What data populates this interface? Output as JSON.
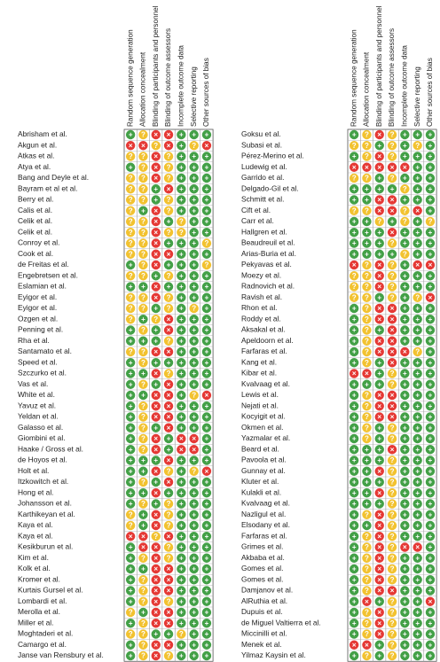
{
  "domains": [
    "Random sequence generation",
    "Allocation concealment",
    "Blinding of participants and personnel",
    "Blinding of outcome assessors",
    "Incomplete outcome data",
    "Selective reporting",
    "Other sources of bias"
  ],
  "left": {
    "rows": [
      {
        "study": "Abrisham et al.",
        "r": [
          "+",
          "?",
          "-",
          "-",
          "+",
          "+",
          "+"
        ]
      },
      {
        "study": "Akgun et al.",
        "r": [
          "-",
          "-",
          "?",
          "-",
          "+",
          "?",
          "-"
        ]
      },
      {
        "study": "Atkas et al.",
        "r": [
          "?",
          "?",
          "-",
          "?",
          "+",
          "+",
          "+"
        ]
      },
      {
        "study": "Atya et al.",
        "r": [
          "+",
          "?",
          "-",
          "?",
          "+",
          "+",
          "+"
        ]
      },
      {
        "study": "Bang and Deyle et al.",
        "r": [
          "?",
          "?",
          "-",
          "?",
          "+",
          "+",
          "+"
        ]
      },
      {
        "study": "Bayram et al et al.",
        "r": [
          "?",
          "?",
          "+",
          "-",
          "+",
          "+",
          "+"
        ]
      },
      {
        "study": "Berry et al.",
        "r": [
          "?",
          "?",
          "+",
          "?",
          "+",
          "+",
          "+"
        ]
      },
      {
        "study": "Calis et al.",
        "r": [
          "?",
          "+",
          "-",
          "?",
          "+",
          "+",
          "+"
        ]
      },
      {
        "study": "Celik et al.",
        "r": [
          "?",
          "?",
          "-",
          "+",
          "?",
          "+",
          "+"
        ]
      },
      {
        "study": "Celik et al.",
        "r": [
          "?",
          "?",
          "-",
          "?",
          "?",
          "+",
          "+"
        ]
      },
      {
        "study": "Conroy et al.",
        "r": [
          "?",
          "?",
          "-",
          "+",
          "+",
          "+",
          "?"
        ]
      },
      {
        "study": "Cook et al.",
        "r": [
          "?",
          "?",
          "-",
          "-",
          "+",
          "+",
          "+"
        ]
      },
      {
        "study": "de Freitas et al.",
        "r": [
          "+",
          "?",
          "-",
          "+",
          "+",
          "+",
          "?"
        ]
      },
      {
        "study": "Engebretsen et al.",
        "r": [
          "?",
          "?",
          "+",
          "?",
          "+",
          "+",
          "+"
        ]
      },
      {
        "study": "Eslamian et al.",
        "r": [
          "+",
          "+",
          "-",
          "+",
          "+",
          "+",
          "+"
        ]
      },
      {
        "study": "Eyigor et al.",
        "r": [
          "?",
          "?",
          "-",
          "?",
          "+",
          "+",
          "+"
        ]
      },
      {
        "study": "Eyigor et al.",
        "r": [
          "?",
          "?",
          "+",
          "?",
          "+",
          "?",
          "+"
        ]
      },
      {
        "study": "Ozgen et al.",
        "r": [
          "?",
          "+",
          "?",
          "-",
          "+",
          "+",
          "+"
        ]
      },
      {
        "study": "Penning et al.",
        "r": [
          "+",
          "?",
          "+",
          "-",
          "+",
          "+",
          "+"
        ]
      },
      {
        "study": "Rha et al.",
        "r": [
          "+",
          "+",
          "+",
          "?",
          "+",
          "+",
          "+"
        ]
      },
      {
        "study": "Santamato et al.",
        "r": [
          "?",
          "?",
          "-",
          "-",
          "+",
          "+",
          "+"
        ]
      },
      {
        "study": "Speed et al.",
        "r": [
          "+",
          "?",
          "+",
          "+",
          "+",
          "+",
          "+"
        ]
      },
      {
        "study": "Szczurko et al.",
        "r": [
          "+",
          "+",
          "-",
          "?",
          "+",
          "+",
          "+"
        ]
      },
      {
        "study": "Vas et al.",
        "r": [
          "+",
          "?",
          "+",
          "-",
          "+",
          "+",
          "+"
        ]
      },
      {
        "study": "White et al.",
        "r": [
          "+",
          "+",
          "-",
          "-",
          "+",
          "?",
          "-"
        ]
      },
      {
        "study": "Yavuz et al.",
        "r": [
          "+",
          "?",
          "-",
          "-",
          "+",
          "+",
          "+"
        ]
      },
      {
        "study": "Yeldan et al.",
        "r": [
          "+",
          "?",
          "-",
          "-",
          "+",
          "+",
          "+"
        ]
      },
      {
        "study": "Galasso et al.",
        "r": [
          "+",
          "?",
          "+",
          "-",
          "+",
          "+",
          "+"
        ]
      },
      {
        "study": "Giombini et al.",
        "r": [
          "+",
          "?",
          "-",
          "+",
          "-",
          "-",
          "+"
        ]
      },
      {
        "study": "Haake / Gross et al.",
        "r": [
          "+",
          "?",
          "-",
          "+",
          "-",
          "-",
          "+"
        ]
      },
      {
        "study": "de Hoyos et al.",
        "r": [
          "+",
          "+",
          "+",
          "-",
          "+",
          "+",
          "+"
        ]
      },
      {
        "study": "Holt et al.",
        "r": [
          "+",
          "+",
          "-",
          "?",
          "+",
          "?",
          "-"
        ]
      },
      {
        "study": "Itzkowitch et al.",
        "r": [
          "+",
          "?",
          "+",
          "-",
          "+",
          "+",
          "+"
        ]
      },
      {
        "study": "Hong et al.",
        "r": [
          "+",
          "+",
          "-",
          "+",
          "+",
          "+",
          "+"
        ]
      },
      {
        "study": "Johansson et al.",
        "r": [
          "+",
          "?",
          "+",
          "?",
          "+",
          "+",
          "+"
        ]
      },
      {
        "study": "Karthikeyan  et al.",
        "r": [
          "?",
          "+",
          "-",
          "?",
          "+",
          "+",
          "+"
        ]
      },
      {
        "study": "Kaya et al.",
        "r": [
          "?",
          "+",
          "-",
          "?",
          "+",
          "+",
          "+"
        ]
      },
      {
        "study": "Kaya et al.",
        "r": [
          "-",
          "-",
          "?",
          "-",
          "+",
          "+",
          "+"
        ]
      },
      {
        "study": "Kesikburun et al.",
        "r": [
          "+",
          "-",
          "-",
          "?",
          "+",
          "+",
          "+"
        ]
      },
      {
        "study": "Kim et al.",
        "r": [
          "+",
          "?",
          "-",
          "?",
          "+",
          "+",
          "+"
        ]
      },
      {
        "study": "Kolk et al.",
        "r": [
          "+",
          "+",
          "-",
          "-",
          "+",
          "+",
          "+"
        ]
      },
      {
        "study": "Kromer et al.",
        "r": [
          "+",
          "?",
          "-",
          "-",
          "+",
          "+",
          "+"
        ]
      },
      {
        "study": "Kurtais Gursel et al.",
        "r": [
          "+",
          "?",
          "-",
          "-",
          "+",
          "+",
          "+"
        ]
      },
      {
        "study": "Lombardi et al.",
        "r": [
          "+",
          "?",
          "-",
          "?",
          "+",
          "+",
          "+"
        ]
      },
      {
        "study": "Merolla et al.",
        "r": [
          "?",
          "+",
          "-",
          "-",
          "+",
          "+",
          "+"
        ]
      },
      {
        "study": "Miller et al.",
        "r": [
          "+",
          "?",
          "-",
          "-",
          "+",
          "+",
          "+"
        ]
      },
      {
        "study": "Moghtaderi et al.",
        "r": [
          "?",
          "?",
          "+",
          "+",
          "?",
          "+",
          "+"
        ]
      },
      {
        "study": "Camargo et al.",
        "r": [
          "+",
          "?",
          "-",
          "-",
          "+",
          "+",
          "+"
        ]
      },
      {
        "study": "Janse van Rensbury et al.",
        "r": [
          "+",
          "?",
          "-",
          "?",
          "+",
          "+",
          "+"
        ]
      }
    ]
  },
  "right": {
    "rows": [
      {
        "study": "Goksu et al.",
        "r": [
          "+",
          "?",
          "-",
          "?",
          "+",
          "+",
          "+"
        ]
      },
      {
        "study": "Subasi  et al.",
        "r": [
          "?",
          "?",
          "+",
          "?",
          "+",
          "?",
          "+"
        ]
      },
      {
        "study": "Pérez-Merino et al.",
        "r": [
          "+",
          "?",
          "-",
          "?",
          "+",
          "+",
          "+"
        ]
      },
      {
        "study": "Ludewig et al.",
        "r": [
          "-",
          "-",
          "-",
          "-",
          "-",
          "+",
          "+"
        ]
      },
      {
        "study": "Garrido et al.",
        "r": [
          "?",
          "?",
          "+",
          "?",
          "+",
          "+",
          "+"
        ]
      },
      {
        "study": "Delgado-Gil et al.",
        "r": [
          "+",
          "+",
          "+",
          "+",
          "?",
          "+",
          "+"
        ]
      },
      {
        "study": "Schmitt  et al.",
        "r": [
          "+",
          "+",
          "-",
          "-",
          "+",
          "+",
          "+"
        ]
      },
      {
        "study": "Cift et al.",
        "r": [
          "?",
          "?",
          "-",
          "-",
          "?",
          "-",
          "+"
        ]
      },
      {
        "study": "Carr et al.",
        "r": [
          "+",
          "+",
          "?",
          "+",
          "?",
          "+",
          "?"
        ]
      },
      {
        "study": "Hallgren et al.",
        "r": [
          "+",
          "+",
          "+",
          "-",
          "+",
          "+",
          "+"
        ]
      },
      {
        "study": "Beaudreuil et al.",
        "r": [
          "+",
          "+",
          "+",
          "?",
          "+",
          "+",
          "+"
        ]
      },
      {
        "study": "Arias-Buria et al.",
        "r": [
          "+",
          "+",
          "+",
          "+",
          "?",
          "+",
          "+"
        ]
      },
      {
        "study": "Pekyavas et al.",
        "r": [
          "-",
          "?",
          "-",
          "?",
          "+",
          "-",
          "-"
        ]
      },
      {
        "study": "Moezy et al.",
        "r": [
          "?",
          "?",
          "-",
          "?",
          "+",
          "+",
          "+"
        ]
      },
      {
        "study": "Radnovich et al.",
        "r": [
          "?",
          "?",
          "-",
          "?",
          "+",
          "+",
          "+"
        ]
      },
      {
        "study": "Ravish et al.",
        "r": [
          "?",
          "?",
          "+",
          "?",
          "+",
          "?",
          "-"
        ]
      },
      {
        "study": "Rhon et al.",
        "r": [
          "+",
          "?",
          "-",
          "-",
          "+",
          "+",
          "+"
        ]
      },
      {
        "study": "Roddy et al.",
        "r": [
          "+",
          "?",
          "-",
          "-",
          "+",
          "+",
          "+"
        ]
      },
      {
        "study": "Aksakal et al.",
        "r": [
          "+",
          "?",
          "+",
          "-",
          "+",
          "+",
          "+"
        ]
      },
      {
        "study": "Apeldoorn et al.",
        "r": [
          "+",
          "?",
          "-",
          "-",
          "+",
          "+",
          "+"
        ]
      },
      {
        "study": "Farfaras et al.",
        "r": [
          "+",
          "?",
          "-",
          "-",
          "-",
          "?",
          "+"
        ]
      },
      {
        "study": "Kang et al.",
        "r": [
          "+",
          "?",
          "+",
          "-",
          "+",
          "+",
          "+"
        ]
      },
      {
        "study": "Kibar et al.",
        "r": [
          "-",
          "-",
          "+",
          "?",
          "+",
          "+",
          "+"
        ]
      },
      {
        "study": "Kvalvaag et al.",
        "r": [
          "+",
          "+",
          "+",
          "?",
          "+",
          "+",
          "+"
        ]
      },
      {
        "study": "Lewis et al.",
        "r": [
          "+",
          "?",
          "-",
          "-",
          "+",
          "+",
          "+"
        ]
      },
      {
        "study": "Nejati et al.",
        "r": [
          "+",
          "?",
          "-",
          "-",
          "+",
          "+",
          "+"
        ]
      },
      {
        "study": "Kocyigit et al.",
        "r": [
          "+",
          "?",
          "-",
          "-",
          "+",
          "+",
          "+"
        ]
      },
      {
        "study": "Okmen et al.",
        "r": [
          "+",
          "?",
          "+",
          "?",
          "+",
          "+",
          "+"
        ]
      },
      {
        "study": "Yazmalar et al.",
        "r": [
          "+",
          "?",
          "+",
          "?",
          "+",
          "+",
          "+"
        ]
      },
      {
        "study": "Beard et al.",
        "r": [
          "+",
          "+",
          "+",
          "-",
          "+",
          "+",
          "+"
        ]
      },
      {
        "study": "Pavoola et al.",
        "r": [
          "+",
          "+",
          "+",
          "?",
          "+",
          "+",
          "+"
        ]
      },
      {
        "study": "Gunnay et al.",
        "r": [
          "+",
          "+",
          "-",
          "?",
          "+",
          "+",
          "+"
        ]
      },
      {
        "study": "Kluter et al.",
        "r": [
          "+",
          "+",
          "+",
          "?",
          "+",
          "+",
          "+"
        ]
      },
      {
        "study": "Kulakli et al.",
        "r": [
          "+",
          "+",
          "-",
          "?",
          "+",
          "+",
          "+"
        ]
      },
      {
        "study": "Kvalvaag et al.",
        "r": [
          "+",
          "+",
          "+",
          "?",
          "+",
          "+",
          "+"
        ]
      },
      {
        "study": "Nazligul et al.",
        "r": [
          "+",
          "?",
          "-",
          "?",
          "+",
          "+",
          "+"
        ]
      },
      {
        "study": "Elsodany et al.",
        "r": [
          "+",
          "+",
          "-",
          "?",
          "+",
          "+",
          "+"
        ]
      },
      {
        "study": "Farfaras et al.",
        "r": [
          "+",
          "?",
          "-",
          "?",
          "+",
          "+",
          "+"
        ]
      },
      {
        "study": "Grimes et al.",
        "r": [
          "+",
          "?",
          "-",
          "?",
          "-",
          "-",
          "+"
        ]
      },
      {
        "study": "Akbaba et al.",
        "r": [
          "+",
          "?",
          "-",
          "?",
          "+",
          "+",
          "+"
        ]
      },
      {
        "study": "Gomes et al.",
        "r": [
          "+",
          "?",
          "-",
          "?",
          "+",
          "+",
          "+"
        ]
      },
      {
        "study": "Gomes et al.",
        "r": [
          "+",
          "?",
          "-",
          "?",
          "+",
          "+",
          "+"
        ]
      },
      {
        "study": "Damjanov et al.",
        "r": [
          "+",
          "?",
          "-",
          "-",
          "+",
          "+",
          "+"
        ]
      },
      {
        "study": "AlRuthia et al.",
        "r": [
          "+",
          "-",
          "+",
          "?",
          "+",
          "+",
          "-"
        ]
      },
      {
        "study": "Dupuis et al.",
        "r": [
          "+",
          "?",
          "-",
          "?",
          "+",
          "+",
          "+"
        ]
      },
      {
        "study": "de Miguel Valtierra et al.",
        "r": [
          "+",
          "?",
          "-",
          "?",
          "+",
          "+",
          "+"
        ]
      },
      {
        "study": "Miccinilli et al.",
        "r": [
          "+",
          "?",
          "-",
          "?",
          "+",
          "+",
          "+"
        ]
      },
      {
        "study": "Menek et al.",
        "r": [
          "-",
          "-",
          "+",
          "?",
          "+",
          "+",
          "+"
        ]
      },
      {
        "study": "Yilmaz Kaysin et al.",
        "r": [
          "+",
          "?",
          "+",
          "?",
          "+",
          "+",
          "+"
        ]
      }
    ]
  }
}
